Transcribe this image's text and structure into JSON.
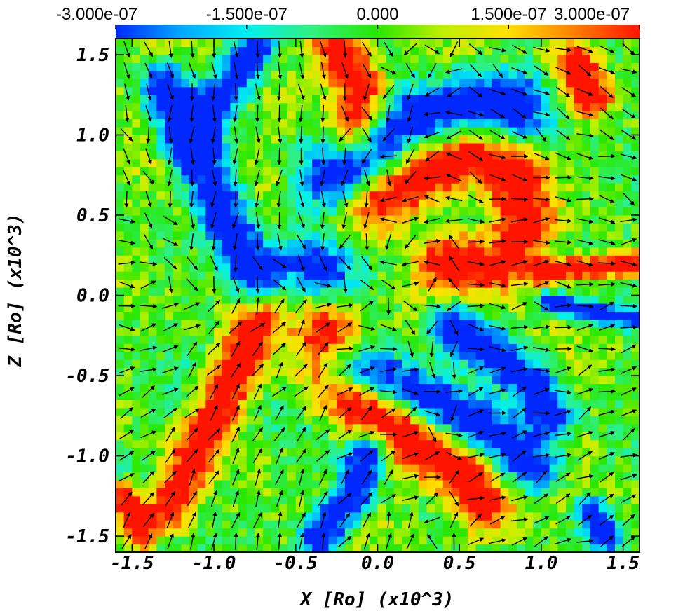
{
  "chart_data": {
    "type": "heatmap",
    "title": "",
    "xlabel": "X [Ro] (x10^3)",
    "ylabel": "Z [Ro] (x10^3)",
    "xlim": [
      -1.6,
      1.6
    ],
    "ylim": [
      -1.6,
      1.6
    ],
    "x_tick_labels": [
      "-1.5",
      "-1.0",
      "-0.5",
      "0.0",
      "0.5",
      "1.0",
      "1.5"
    ],
    "x_tick_values": [
      -1.5,
      -1.0,
      -0.5,
      0.0,
      0.5,
      1.0,
      1.5
    ],
    "y_tick_labels": [
      "-1.5",
      "-1.0",
      "-0.5",
      "0.0",
      "0.5",
      "1.0",
      "1.5"
    ],
    "y_tick_values": [
      -1.5,
      -1.0,
      -0.5,
      0.0,
      0.5,
      1.0,
      1.5
    ],
    "colorbar": {
      "range": [
        -3e-07,
        3e-07
      ],
      "tick_labels": [
        "-3.000e-07",
        "-1.500e-07",
        "0.000",
        "1.500e-07",
        "3.000e-07"
      ],
      "tick_values": [
        -3e-07,
        -1.5e-07,
        0.0,
        1.5e-07,
        3e-07
      ],
      "colormap": [
        "#0028ff",
        "#00a8ff",
        "#00f0f0",
        "#30f080",
        "#28e800",
        "#c0f000",
        "#ffe000",
        "#ff8000",
        "#ff1400"
      ]
    },
    "grid": false,
    "vector_overlay": true,
    "structures": [
      {
        "sign": "negative",
        "path": [
          [
            -0.55,
            0.0
          ],
          [
            -0.33,
            0.25
          ],
          [
            -0.25,
            0.75
          ],
          [
            -0.1,
            0.88
          ],
          [
            0.2,
            1.05
          ],
          [
            0.5,
            1.15
          ],
          [
            0.82,
            1.18
          ]
        ],
        "width": 0.16
      },
      {
        "sign": "positive",
        "path": [
          [
            -0.25,
            0.45
          ],
          [
            0.0,
            0.6
          ],
          [
            0.3,
            0.8
          ],
          [
            0.6,
            0.9
          ],
          [
            0.85,
            0.75
          ],
          [
            0.9,
            0.45
          ],
          [
            0.75,
            0.2
          ],
          [
            0.45,
            0.2
          ]
        ],
        "width": 0.15
      },
      {
        "sign": "negative",
        "path": [
          [
            -0.55,
            0.0
          ],
          [
            -0.8,
            0.22
          ],
          [
            -0.95,
            0.55
          ],
          [
            -1.12,
            0.95
          ],
          [
            -1.3,
            1.3
          ]
        ],
        "width": 0.12
      },
      {
        "sign": "negative",
        "path": [
          [
            -0.75,
            1.55
          ],
          [
            -0.95,
            1.25
          ],
          [
            -1.15,
            0.95
          ]
        ],
        "width": 0.1
      },
      {
        "sign": "positive",
        "path": [
          [
            -0.25,
            1.55
          ],
          [
            -0.1,
            1.3
          ],
          [
            -0.15,
            1.0
          ]
        ],
        "width": 0.12
      },
      {
        "sign": "positive",
        "path": [
          [
            -0.55,
            0.0
          ],
          [
            -0.75,
            -0.2
          ],
          [
            -0.9,
            -0.55
          ],
          [
            -1.1,
            -0.95
          ],
          [
            -1.3,
            -1.35
          ]
        ],
        "width": 0.11
      },
      {
        "sign": "positive",
        "path": [
          [
            -0.55,
            0.0
          ],
          [
            -0.3,
            -0.25
          ],
          [
            -0.25,
            -0.55
          ],
          [
            0.0,
            -0.75
          ],
          [
            0.3,
            -0.95
          ],
          [
            0.55,
            -1.15
          ],
          [
            0.65,
            -1.3
          ]
        ],
        "width": 0.14
      },
      {
        "sign": "negative",
        "path": [
          [
            -0.2,
            -0.45
          ],
          [
            0.1,
            -0.55
          ],
          [
            0.4,
            -0.7
          ],
          [
            0.7,
            -0.85
          ],
          [
            0.95,
            -1.05
          ]
        ],
        "width": 0.13
      },
      {
        "sign": "negative",
        "path": [
          [
            0.45,
            -0.2
          ],
          [
            0.7,
            -0.35
          ],
          [
            0.95,
            -0.55
          ],
          [
            1.05,
            -0.75
          ]
        ],
        "width": 0.11
      },
      {
        "sign": "positive",
        "path": [
          [
            1.0,
            0.15
          ],
          [
            1.6,
            0.2
          ]
        ],
        "width": 0.06
      },
      {
        "sign": "negative",
        "path": [
          [
            1.05,
            -0.05
          ],
          [
            1.6,
            -0.15
          ]
        ],
        "width": 0.05
      },
      {
        "sign": "positive",
        "path": [
          [
            1.2,
            1.45
          ],
          [
            1.3,
            1.25
          ]
        ],
        "width": 0.1
      },
      {
        "sign": "negative",
        "path": [
          [
            1.3,
            -1.35
          ],
          [
            1.4,
            -1.5
          ]
        ],
        "width": 0.08
      },
      {
        "sign": "negative",
        "path": [
          [
            -0.35,
            -1.5
          ],
          [
            -0.15,
            -1.25
          ],
          [
            -0.05,
            -0.95
          ]
        ],
        "width": 0.09
      },
      {
        "sign": "positive",
        "path": [
          [
            -1.55,
            -1.25
          ],
          [
            -1.45,
            -1.5
          ]
        ],
        "width": 0.07
      }
    ]
  }
}
